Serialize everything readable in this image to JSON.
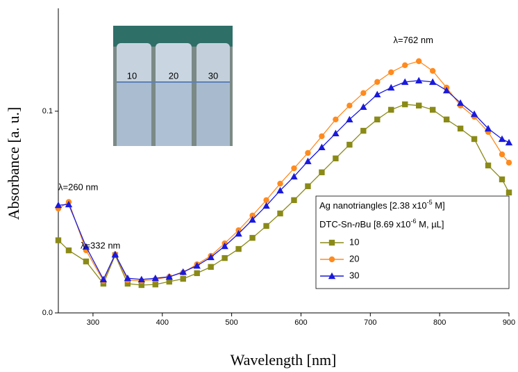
{
  "chart_data": {
    "type": "line",
    "x_label": "Wavelength [nm]",
    "y_label": "Absorbance [a. u.]",
    "x": [
      250,
      265,
      290,
      315,
      332,
      350,
      370,
      390,
      410,
      430,
      450,
      470,
      490,
      510,
      530,
      550,
      570,
      590,
      610,
      630,
      650,
      670,
      690,
      710,
      730,
      750,
      770,
      790,
      810,
      830,
      850,
      870,
      890,
      900
    ],
    "series": [
      {
        "name": "10",
        "color": "#8a8a18",
        "marker": "square",
        "values": [
          0.036,
          0.031,
          0.0255,
          0.0145,
          0.0286,
          0.0145,
          0.0138,
          0.0141,
          0.0155,
          0.0169,
          0.0197,
          0.0228,
          0.0272,
          0.0317,
          0.0372,
          0.0431,
          0.0493,
          0.0559,
          0.0628,
          0.0697,
          0.0766,
          0.0834,
          0.0903,
          0.0959,
          0.1007,
          0.1034,
          0.1028,
          0.1007,
          0.0959,
          0.0914,
          0.0862,
          0.0731,
          0.0662,
          0.0597
        ]
      },
      {
        "name": "20",
        "color": "#ff8a1e",
        "marker": "circle",
        "values": [
          0.0517,
          0.055,
          0.031,
          0.0159,
          0.029,
          0.0162,
          0.0159,
          0.0166,
          0.0179,
          0.02,
          0.0241,
          0.0283,
          0.0345,
          0.041,
          0.0483,
          0.0559,
          0.0641,
          0.0717,
          0.0793,
          0.0876,
          0.0959,
          0.1028,
          0.109,
          0.1145,
          0.1193,
          0.1228,
          0.1248,
          0.12,
          0.1117,
          0.1028,
          0.0972,
          0.0897,
          0.0786,
          0.0745
        ]
      },
      {
        "name": "30",
        "color": "#1a1adc",
        "marker": "triangle",
        "values": [
          0.0534,
          0.0538,
          0.0328,
          0.0166,
          0.029,
          0.0172,
          0.0166,
          0.0172,
          0.0179,
          0.0203,
          0.0234,
          0.0276,
          0.0331,
          0.0393,
          0.0462,
          0.0531,
          0.0607,
          0.0676,
          0.0752,
          0.0821,
          0.089,
          0.0959,
          0.1021,
          0.1083,
          0.1117,
          0.1145,
          0.1152,
          0.1145,
          0.1103,
          0.1041,
          0.0986,
          0.0914,
          0.0862,
          0.0845
        ]
      }
    ],
    "xlim": [
      250,
      900
    ],
    "xticks": [
      300,
      400,
      500,
      600,
      700,
      800,
      900
    ],
    "ylim": [
      0,
      0.151
    ],
    "yticks": [
      {
        "value": 0,
        "label": "0.0"
      },
      0.1
    ],
    "legend_title": [
      [
        {
          "text": "Ag nanotriangles [2.38 x10"
        },
        {
          "text": "-5",
          "sup": true
        },
        {
          "text": " M]"
        }
      ],
      [
        {
          "text": "DTC-Sn-"
        },
        {
          "text": "n",
          "italic": true
        },
        {
          "text": "Bu [8.69 x10"
        },
        {
          "text": "-6",
          "sup": true
        },
        {
          "text": " M, µL]"
        }
      ]
    ],
    "annotations": [
      {
        "text": "λ=762 nm",
        "x": 762,
        "y": 0.135
      },
      {
        "text": "λ=260 nm",
        "x": 250,
        "y": 0.062
      },
      {
        "text": "λ=332 nm",
        "x": 282,
        "y": 0.033
      }
    ],
    "inset_labels": [
      "10",
      "20",
      "30"
    ]
  }
}
